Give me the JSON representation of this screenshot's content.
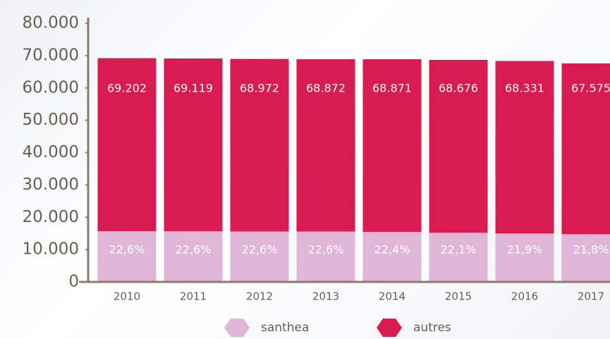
{
  "chart_data": {
    "type": "stacked-share-bar",
    "categories": [
      "2010",
      "2011",
      "2012",
      "2013",
      "2014",
      "2015",
      "2016",
      "2017"
    ],
    "series": [
      {
        "name": "santhea",
        "color": "#e0b6d8",
        "values": [
          22.6,
          22.6,
          22.6,
          22.6,
          22.4,
          22.1,
          21.9,
          21.8
        ],
        "value_labels": [
          "22,6%",
          "22,6%",
          "22,6%",
          "22,6%",
          "22,4%",
          "22,1%",
          "21,9%",
          "21,8%"
        ]
      },
      {
        "name": "autres",
        "color": "#d81b50",
        "values": [
          69202,
          69119,
          68972,
          68872,
          68871,
          68676,
          68331,
          67575
        ],
        "value_labels": [
          "69.202",
          "69.119",
          "68.972",
          "68.872",
          "68.871",
          "68.676",
          "68.331",
          "67.575"
        ]
      }
    ],
    "ylim": [
      0,
      80000
    ],
    "yticks": [
      0,
      {
        "value": 10000,
        "label": "10.000"
      },
      {
        "value": 20000,
        "label": "20.000"
      },
      {
        "value": 30000,
        "label": "30.000"
      },
      {
        "value": 40000,
        "label": "40.000"
      },
      {
        "value": 50000,
        "label": "50.000"
      },
      {
        "value": 60000,
        "label": "60.000"
      },
      {
        "value": 70000,
        "label": "70.000"
      },
      {
        "value": 80000,
        "label": "80.000"
      }
    ],
    "legend": "bottom"
  }
}
